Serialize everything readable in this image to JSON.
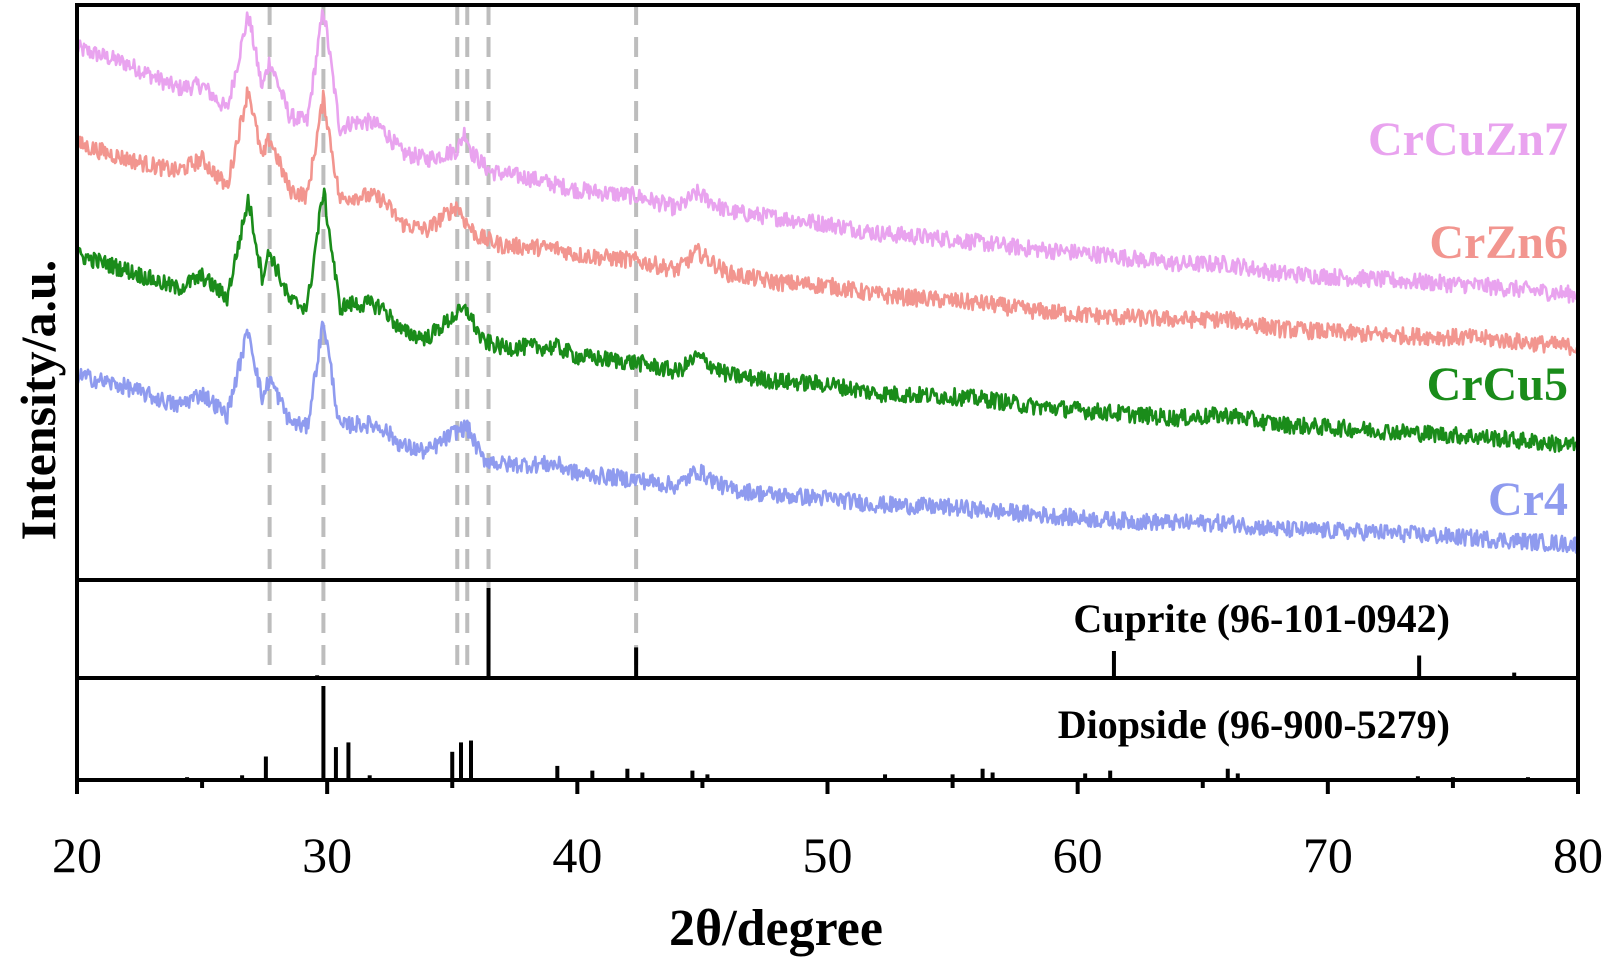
{
  "chart_data": {
    "type": "line",
    "xlabel": "2θ/degree",
    "ylabel": "Intensity/a.u.",
    "xlim": [
      20,
      80
    ],
    "xticks": [
      "20",
      "30",
      "40",
      "50",
      "60",
      "70",
      "80"
    ],
    "series": [
      {
        "name": "CrCuZn7",
        "color": "#e9a3ef",
        "points": [
          [
            20,
            13.6
          ],
          [
            22,
            13.1
          ],
          [
            24,
            12.3
          ],
          [
            25,
            12.4
          ],
          [
            26,
            11.6
          ],
          [
            26.85,
            14.7
          ],
          [
            27.4,
            12.3
          ],
          [
            27.7,
            13.2
          ],
          [
            28.5,
            11.4
          ],
          [
            29.2,
            11.2
          ],
          [
            29.85,
            14.9
          ],
          [
            30.5,
            11.0
          ],
          [
            31,
            11.2
          ],
          [
            31.7,
            11.2
          ],
          [
            32.2,
            11.0
          ],
          [
            33,
            10.2
          ],
          [
            34,
            10.0
          ],
          [
            35.2,
            10.3
          ],
          [
            35.5,
            10.9
          ],
          [
            35.8,
            10.2
          ],
          [
            36.5,
            9.6
          ],
          [
            38,
            9.4
          ],
          [
            40,
            9.0
          ],
          [
            42.4,
            8.8
          ],
          [
            44,
            8.4
          ],
          [
            44.8,
            8.9
          ],
          [
            46,
            8.3
          ],
          [
            48,
            8.1
          ],
          [
            50,
            7.9
          ],
          [
            52,
            7.6
          ],
          [
            55,
            7.4
          ],
          [
            58,
            7.1
          ],
          [
            61,
            6.9
          ],
          [
            64,
            6.6
          ],
          [
            66,
            6.6
          ],
          [
            68,
            6.3
          ],
          [
            72,
            6.1
          ],
          [
            76,
            5.9
          ],
          [
            80,
            5.6
          ]
        ]
      },
      {
        "name": "CrZn6",
        "color": "#f2958f",
        "points": [
          [
            20,
            10.5
          ],
          [
            22,
            10.0
          ],
          [
            24,
            9.6
          ],
          [
            25,
            10.0
          ],
          [
            26,
            9.1
          ],
          [
            26.85,
            12.3
          ],
          [
            27.4,
            10.0
          ],
          [
            27.7,
            10.7
          ],
          [
            28.5,
            9.0
          ],
          [
            29.2,
            8.8
          ],
          [
            29.85,
            12.0
          ],
          [
            30.5,
            8.7
          ],
          [
            31,
            8.8
          ],
          [
            31.7,
            8.8
          ],
          [
            32.2,
            8.7
          ],
          [
            33,
            7.9
          ],
          [
            34,
            7.7
          ],
          [
            35.2,
            8.5
          ],
          [
            35.5,
            8.0
          ],
          [
            36,
            7.5
          ],
          [
            37,
            7.2
          ],
          [
            39.2,
            7.1
          ],
          [
            40,
            6.9
          ],
          [
            42.4,
            6.7
          ],
          [
            44,
            6.4
          ],
          [
            44.8,
            7.0
          ],
          [
            46,
            6.3
          ],
          [
            48,
            6.0
          ],
          [
            50,
            5.9
          ],
          [
            52,
            5.6
          ],
          [
            55,
            5.4
          ],
          [
            56.5,
            5.3
          ],
          [
            58,
            5.1
          ],
          [
            61,
            4.9
          ],
          [
            64,
            4.8
          ],
          [
            66,
            4.8
          ],
          [
            68,
            4.5
          ],
          [
            72,
            4.3
          ],
          [
            76,
            4.2
          ],
          [
            80,
            3.9
          ]
        ]
      },
      {
        "name": "CrCu5",
        "color": "#1a8c1a",
        "points": [
          [
            20,
            6.9
          ],
          [
            22,
            6.4
          ],
          [
            24,
            5.8
          ],
          [
            25,
            6.2
          ],
          [
            26,
            5.5
          ],
          [
            26.85,
            8.7
          ],
          [
            27.4,
            6.2
          ],
          [
            27.7,
            7.0
          ],
          [
            28.5,
            5.4
          ],
          [
            29.2,
            5.2
          ],
          [
            29.85,
            9.0
          ],
          [
            30.5,
            5.2
          ],
          [
            31,
            5.3
          ],
          [
            31.7,
            5.3
          ],
          [
            32.2,
            5.2
          ],
          [
            33,
            4.4
          ],
          [
            34,
            4.2
          ],
          [
            35.2,
            5.0
          ],
          [
            35.6,
            5.1
          ],
          [
            36.2,
            4.1
          ],
          [
            37,
            3.9
          ],
          [
            39.2,
            3.9
          ],
          [
            40,
            3.6
          ],
          [
            42.4,
            3.4
          ],
          [
            44,
            3.1
          ],
          [
            44.8,
            3.6
          ],
          [
            46,
            3.0
          ],
          [
            48,
            2.8
          ],
          [
            50,
            2.7
          ],
          [
            52,
            2.4
          ],
          [
            55,
            2.3
          ],
          [
            56.5,
            2.2
          ],
          [
            58,
            2.0
          ],
          [
            61,
            1.8
          ],
          [
            64,
            1.6
          ],
          [
            66,
            1.7
          ],
          [
            68,
            1.4
          ],
          [
            72,
            1.2
          ],
          [
            76,
            1.0
          ],
          [
            80,
            0.7
          ]
        ]
      },
      {
        "name": "Cr4",
        "color": "#8f9bef",
        "points": [
          [
            20,
            3.0
          ],
          [
            22,
            2.6
          ],
          [
            24,
            2.0
          ],
          [
            25,
            2.4
          ],
          [
            26,
            1.7
          ],
          [
            26.85,
            4.5
          ],
          [
            27.4,
            2.2
          ],
          [
            27.7,
            2.9
          ],
          [
            28.5,
            1.5
          ],
          [
            29.2,
            1.3
          ],
          [
            29.85,
            4.8
          ],
          [
            30.5,
            1.3
          ],
          [
            31,
            1.4
          ],
          [
            31.7,
            1.4
          ],
          [
            32.2,
            1.3
          ],
          [
            33,
            0.7
          ],
          [
            34,
            0.5
          ],
          [
            35.2,
            1.2
          ],
          [
            35.6,
            1.3
          ],
          [
            36.2,
            0.3
          ],
          [
            37,
            0.1
          ],
          [
            39.2,
            0.1
          ],
          [
            40,
            -0.2
          ],
          [
            42.4,
            -0.4
          ],
          [
            44,
            -0.6
          ],
          [
            44.8,
            -0.1
          ],
          [
            46,
            -0.7
          ],
          [
            48,
            -0.9
          ],
          [
            50,
            -1.0
          ],
          [
            52,
            -1.2
          ],
          [
            55,
            -1.3
          ],
          [
            56.5,
            -1.4
          ],
          [
            58,
            -1.5
          ],
          [
            61,
            -1.7
          ],
          [
            64,
            -1.8
          ],
          [
            66,
            -1.8
          ],
          [
            68,
            -2.0
          ],
          [
            72,
            -2.1
          ],
          [
            76,
            -2.3
          ],
          [
            80,
            -2.5
          ]
        ]
      }
    ],
    "references": [
      {
        "name": "Cuprite (96-101-0942)",
        "sticks": [
          [
            29.6,
            0.03
          ],
          [
            36.45,
            1.0
          ],
          [
            42.35,
            0.34
          ],
          [
            52.5,
            0.02
          ],
          [
            61.45,
            0.3
          ],
          [
            73.65,
            0.25
          ],
          [
            77.45,
            0.06
          ]
        ]
      },
      {
        "name": "Diopside (96-900-5279)",
        "sticks": [
          [
            24.4,
            0.03
          ],
          [
            26.6,
            0.05
          ],
          [
            27.55,
            0.25
          ],
          [
            29.85,
            1.0
          ],
          [
            30.35,
            0.35
          ],
          [
            30.85,
            0.4
          ],
          [
            31.7,
            0.05
          ],
          [
            35.0,
            0.3
          ],
          [
            35.35,
            0.4
          ],
          [
            35.75,
            0.42
          ],
          [
            39.2,
            0.15
          ],
          [
            40.6,
            0.1
          ],
          [
            42.0,
            0.12
          ],
          [
            42.6,
            0.08
          ],
          [
            44.6,
            0.1
          ],
          [
            45.2,
            0.06
          ],
          [
            52.3,
            0.06
          ],
          [
            55.0,
            0.06
          ],
          [
            56.2,
            0.12
          ],
          [
            56.6,
            0.08
          ],
          [
            60.3,
            0.07
          ],
          [
            61.3,
            0.1
          ],
          [
            66.0,
            0.12
          ],
          [
            66.4,
            0.07
          ],
          [
            73.6,
            0.04
          ],
          [
            75.0,
            0.03
          ],
          [
            78.0,
            0.03
          ]
        ]
      }
    ],
    "dashed_lines_x": [
      27.7,
      29.85,
      35.2,
      35.6,
      36.45,
      42.35
    ]
  }
}
